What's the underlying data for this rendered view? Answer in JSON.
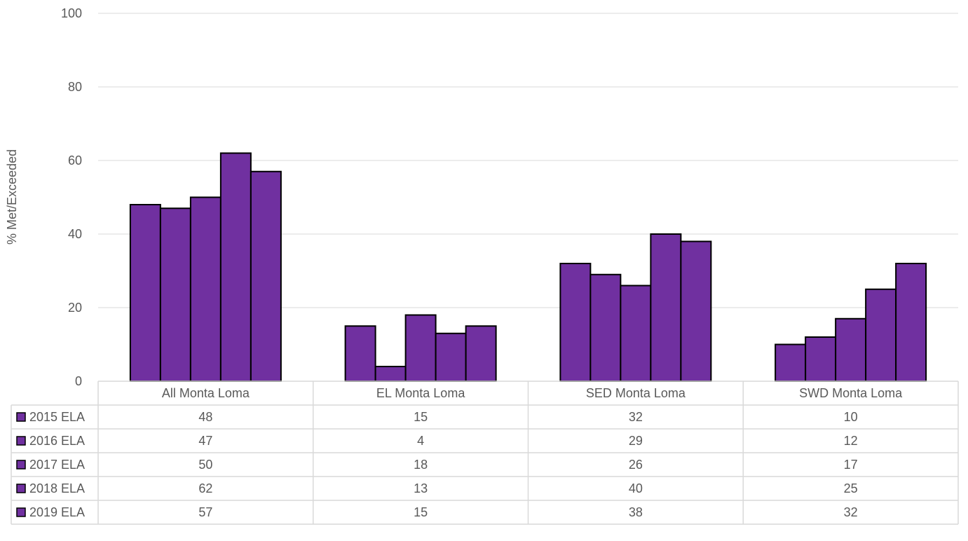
{
  "chart_data": {
    "type": "bar",
    "ylabel": "% Met/Exceeded",
    "ylim": [
      0,
      100
    ],
    "yticks": [
      "0",
      "20",
      "40",
      "60",
      "80",
      "100"
    ],
    "grid": true,
    "legend": "data-table",
    "categories": [
      "All Monta Loma",
      "EL Monta Loma",
      "SED Monta Loma",
      "SWD Monta Loma"
    ],
    "series": [
      {
        "name": "2015 ELA",
        "values": [
          48,
          15,
          32,
          10
        ]
      },
      {
        "name": "2016 ELA",
        "values": [
          47,
          4,
          29,
          12
        ]
      },
      {
        "name": "2017 ELA",
        "values": [
          50,
          18,
          26,
          17
        ]
      },
      {
        "name": "2018 ELA",
        "values": [
          62,
          13,
          40,
          25
        ]
      },
      {
        "name": "2019 ELA",
        "values": [
          57,
          15,
          38,
          32
        ]
      }
    ],
    "colors": {
      "bar": "#7030a0",
      "bar_outline": "#000000",
      "grid": "#d9d9d9",
      "text": "#595959"
    }
  }
}
